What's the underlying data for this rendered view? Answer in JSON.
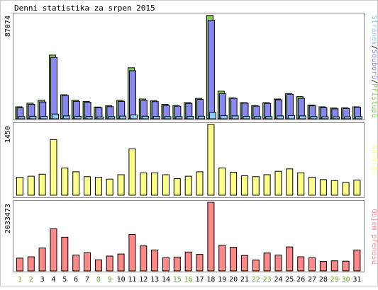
{
  "title": "Denní statistika za srpen 2015",
  "colors": {
    "hits": "#88cc55",
    "files": "#8888ee",
    "pages": "#88ccee",
    "visits": "#ffff88",
    "kbytes": "#ff8888",
    "weekday_label": "#000000",
    "weekend_label": "#66aa22",
    "frame": "#888888",
    "bar_outline": "#000000"
  },
  "chart_data": [
    {
      "type": "bar",
      "panel": "hits-files-pages",
      "ymax_label": "87074",
      "ylim": [
        0,
        87074
      ],
      "legend": {
        "placement": "right-vertical",
        "parts": [
          "Stránek",
          "/",
          "Souborů",
          "/",
          "Přístupů"
        ]
      },
      "categories": [
        "1",
        "2",
        "3",
        "4",
        "5",
        "6",
        "7",
        "8",
        "9",
        "10",
        "11",
        "12",
        "13",
        "14",
        "15",
        "16",
        "17",
        "18",
        "19",
        "20",
        "21",
        "22",
        "23",
        "24",
        "25",
        "26",
        "27",
        "28",
        "29",
        "30",
        "31"
      ],
      "series": [
        {
          "name": "Přístupů",
          "values": [
            10000,
            13000,
            15500,
            53000,
            20000,
            15500,
            14500,
            9800,
            10800,
            15500,
            42500,
            16500,
            15000,
            12000,
            11000,
            13500,
            17000,
            86000,
            23000,
            17500,
            13500,
            11000,
            13500,
            16500,
            21000,
            18500,
            11500,
            10000,
            9000,
            9200,
            10000
          ]
        },
        {
          "name": "Souborů",
          "values": [
            9200,
            12000,
            14000,
            51000,
            19500,
            14500,
            13800,
            9300,
            10200,
            14500,
            40000,
            15500,
            14300,
            11200,
            10500,
            12800,
            16200,
            82000,
            21000,
            17000,
            13000,
            10500,
            12800,
            15800,
            20500,
            17000,
            10800,
            9300,
            8300,
            8700,
            9600
          ]
        },
        {
          "name": "Stránek",
          "values": [
            1800,
            2100,
            2000,
            4000,
            2400,
            2000,
            2000,
            1600,
            1800,
            2300,
            3300,
            2200,
            2000,
            1800,
            1800,
            2000,
            2200,
            5300,
            2600,
            2400,
            2000,
            1900,
            1900,
            2400,
            2700,
            2400,
            1900,
            1700,
            1700,
            1700,
            1800
          ]
        }
      ]
    },
    {
      "type": "bar",
      "panel": "visits",
      "ymax_label": "1450",
      "ylim": [
        0,
        1450
      ],
      "legend": {
        "placement": "right-vertical",
        "parts": [
          "Návštěv"
        ]
      },
      "categories": [
        "1",
        "2",
        "3",
        "4",
        "5",
        "6",
        "7",
        "8",
        "9",
        "10",
        "11",
        "12",
        "13",
        "14",
        "15",
        "16",
        "17",
        "18",
        "19",
        "20",
        "21",
        "22",
        "23",
        "24",
        "25",
        "26",
        "27",
        "28",
        "29",
        "30",
        "31"
      ],
      "series": [
        {
          "name": "Návštěv",
          "values": [
            370,
            390,
            430,
            1140,
            560,
            480,
            380,
            370,
            330,
            420,
            950,
            460,
            460,
            420,
            340,
            390,
            480,
            1450,
            560,
            470,
            400,
            380,
            420,
            490,
            540,
            460,
            370,
            320,
            300,
            260,
            310
          ]
        }
      ]
    },
    {
      "type": "bar",
      "panel": "kbytes",
      "ymax_label": "2033473",
      "ylim": [
        0,
        2033473
      ],
      "legend": {
        "placement": "right-vertical",
        "parts": [
          "Objem přenosu"
        ]
      },
      "categories": [
        "1",
        "2",
        "3",
        "4",
        "5",
        "6",
        "7",
        "8",
        "9",
        "10",
        "11",
        "12",
        "13",
        "14",
        "15",
        "16",
        "17",
        "18",
        "19",
        "20",
        "21",
        "22",
        "23",
        "24",
        "25",
        "26",
        "27",
        "28",
        "29",
        "30",
        "31"
      ],
      "series": [
        {
          "name": "Objem přenosu",
          "values": [
            380000,
            420000,
            680000,
            1250000,
            1000000,
            470000,
            540000,
            330000,
            440000,
            500000,
            1080000,
            740000,
            620000,
            390000,
            410000,
            560000,
            490000,
            2033473,
            760000,
            700000,
            460000,
            320000,
            530000,
            470000,
            710000,
            420000,
            390000,
            280000,
            300000,
            290000,
            620000
          ]
        }
      ]
    }
  ],
  "x_labels": [
    {
      "label": "1",
      "weekend": true
    },
    {
      "label": "2",
      "weekend": true
    },
    {
      "label": "3",
      "weekend": false
    },
    {
      "label": "4",
      "weekend": false
    },
    {
      "label": "5",
      "weekend": false
    },
    {
      "label": "6",
      "weekend": false
    },
    {
      "label": "7",
      "weekend": false
    },
    {
      "label": "8",
      "weekend": true
    },
    {
      "label": "9",
      "weekend": true
    },
    {
      "label": "10",
      "weekend": false
    },
    {
      "label": "11",
      "weekend": false
    },
    {
      "label": "12",
      "weekend": false
    },
    {
      "label": "13",
      "weekend": false
    },
    {
      "label": "14",
      "weekend": false
    },
    {
      "label": "15",
      "weekend": true
    },
    {
      "label": "16",
      "weekend": true
    },
    {
      "label": "17",
      "weekend": false
    },
    {
      "label": "18",
      "weekend": false
    },
    {
      "label": "19",
      "weekend": false
    },
    {
      "label": "20",
      "weekend": false
    },
    {
      "label": "21",
      "weekend": false
    },
    {
      "label": "22",
      "weekend": true
    },
    {
      "label": "23",
      "weekend": true
    },
    {
      "label": "24",
      "weekend": false
    },
    {
      "label": "25",
      "weekend": false
    },
    {
      "label": "26",
      "weekend": false
    },
    {
      "label": "27",
      "weekend": false
    },
    {
      "label": "28",
      "weekend": false
    },
    {
      "label": "29",
      "weekend": true
    },
    {
      "label": "30",
      "weekend": true
    },
    {
      "label": "31",
      "weekend": false
    }
  ]
}
